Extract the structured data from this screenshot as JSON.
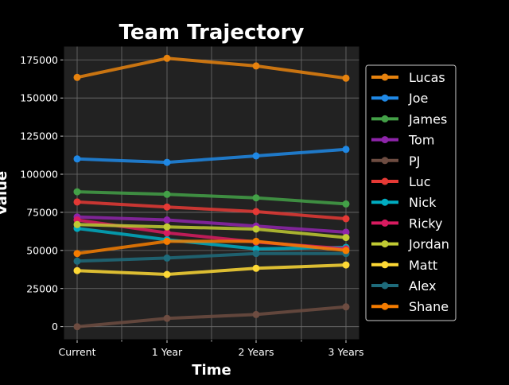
{
  "chart_data": {
    "type": "line",
    "title": "Team Trajectory",
    "xlabel": "Time",
    "ylabel": "Value",
    "categories": [
      "Current",
      "1 Year",
      "2 Years",
      "3 Years"
    ],
    "ylim": [
      -8500,
      184000
    ],
    "yticks": [
      0,
      25000,
      50000,
      75000,
      100000,
      125000,
      150000,
      175000
    ],
    "ytick_labels": [
      "0",
      "25000",
      "50000",
      "75000",
      "100000",
      "125000",
      "150000",
      "175000"
    ],
    "grid": true,
    "legend_position": "right",
    "background_color": "#222222",
    "series": [
      {
        "name": "Lucas",
        "color": "#e6820e",
        "values": [
          163500,
          176000,
          171000,
          163000
        ]
      },
      {
        "name": "Joe",
        "color": "#1f88e5",
        "values": [
          110000,
          107800,
          112000,
          116300
        ]
      },
      {
        "name": "James",
        "color": "#43a047",
        "values": [
          88500,
          86800,
          84500,
          80500
        ]
      },
      {
        "name": "Tom",
        "color": "#8e24aa",
        "values": [
          72000,
          70000,
          66000,
          62000
        ]
      },
      {
        "name": "PJ",
        "color": "#6d4c41",
        "values": [
          0,
          5500,
          8000,
          13000
        ]
      },
      {
        "name": "Luc",
        "color": "#e53935",
        "values": [
          81800,
          78500,
          75500,
          70800
        ]
      },
      {
        "name": "Nick",
        "color": "#00acc1",
        "values": [
          64500,
          57000,
          51000,
          52000
        ]
      },
      {
        "name": "Ricky",
        "color": "#d81b60",
        "values": [
          70000,
          61500,
          55500,
          51000
        ]
      },
      {
        "name": "Jordan",
        "color": "#c0ca33",
        "values": [
          67000,
          65500,
          64000,
          58500
        ]
      },
      {
        "name": "Matt",
        "color": "#fdd835",
        "values": [
          36800,
          34300,
          38300,
          40500
        ]
      },
      {
        "name": "Alex",
        "color": "#1e6b7b",
        "values": [
          43000,
          45000,
          48000,
          48000
        ]
      },
      {
        "name": "Shane",
        "color": "#f57c00",
        "values": [
          48000,
          56000,
          56000,
          50000
        ]
      }
    ]
  }
}
